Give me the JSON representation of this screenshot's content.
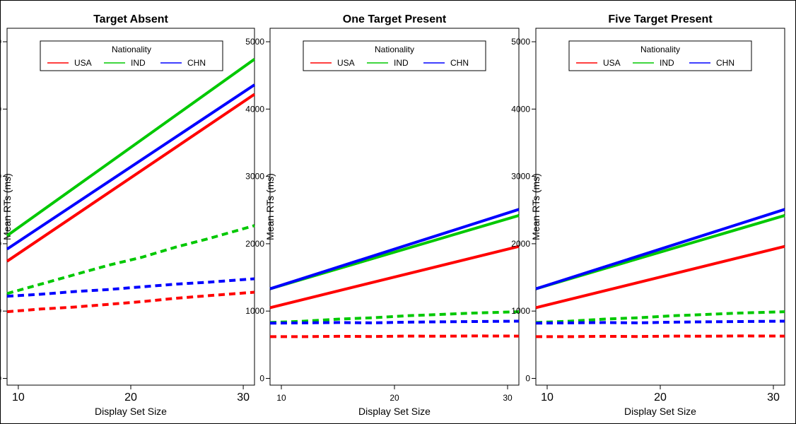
{
  "chart_data": [
    {
      "type": "line",
      "title": "Target Absent",
      "xlabel": "Display Set Size",
      "ylabel": "Mean RTs (ms)",
      "xlim": [
        9,
        31
      ],
      "ylim": [
        -100,
        5200
      ],
      "xticks": [
        10,
        20,
        30
      ],
      "yticks": [
        0,
        1000,
        2000,
        3000,
        4000,
        5000
      ],
      "legend": {
        "title": "Nationality",
        "position": "top-left",
        "entries": [
          "USA",
          "IND",
          "CHN"
        ]
      },
      "series": [
        {
          "name": "USA",
          "color": "#ff0000",
          "style": "solid",
          "x": [
            9,
            31
          ],
          "y": [
            1740,
            4220
          ]
        },
        {
          "name": "IND",
          "color": "#00c800",
          "style": "solid",
          "x": [
            9,
            31
          ],
          "y": [
            2120,
            4740
          ]
        },
        {
          "name": "CHN",
          "color": "#0000ff",
          "style": "solid",
          "x": [
            9,
            31
          ],
          "y": [
            1920,
            4360
          ]
        },
        {
          "name": "USA",
          "color": "#ff0000",
          "style": "dashed",
          "x": [
            9,
            12,
            15,
            18,
            21,
            24,
            27,
            31
          ],
          "y": [
            990,
            1030,
            1060,
            1100,
            1140,
            1190,
            1230,
            1280
          ]
        },
        {
          "name": "IND",
          "color": "#00c800",
          "style": "dashed",
          "x": [
            9,
            12,
            15,
            18,
            21,
            24,
            27,
            31
          ],
          "y": [
            1260,
            1400,
            1540,
            1680,
            1800,
            1950,
            2080,
            2270
          ]
        },
        {
          "name": "CHN",
          "color": "#0000ff",
          "style": "dashed",
          "x": [
            9,
            12,
            15,
            18,
            21,
            24,
            27,
            31
          ],
          "y": [
            1220,
            1250,
            1290,
            1320,
            1360,
            1400,
            1430,
            1480
          ]
        }
      ]
    },
    {
      "type": "line",
      "title": "One Target Present",
      "xlabel": "Display Set Size",
      "ylabel": "Mean RTs (ms)",
      "xlim": [
        9,
        31
      ],
      "ylim": [
        -100,
        5200
      ],
      "xticks": [
        10,
        20,
        30
      ],
      "yticks": [
        0,
        1000,
        2000,
        3000,
        4000,
        5000
      ],
      "legend": {
        "title": "Nationality",
        "position": "top-left",
        "entries": [
          "USA",
          "IND",
          "CHN"
        ]
      },
      "series": [
        {
          "name": "USA",
          "color": "#ff0000",
          "style": "solid",
          "x": [
            9,
            31
          ],
          "y": [
            1050,
            1960
          ]
        },
        {
          "name": "IND",
          "color": "#00c800",
          "style": "solid",
          "x": [
            9,
            31
          ],
          "y": [
            1330,
            2420
          ]
        },
        {
          "name": "CHN",
          "color": "#0000ff",
          "style": "solid",
          "x": [
            9,
            31
          ],
          "y": [
            1330,
            2510
          ]
        },
        {
          "name": "USA",
          "color": "#ff0000",
          "style": "dashed",
          "x": [
            9,
            12,
            15,
            18,
            21,
            24,
            27,
            31
          ],
          "y": [
            620,
            620,
            625,
            622,
            628,
            626,
            630,
            628
          ]
        },
        {
          "name": "IND",
          "color": "#00c800",
          "style": "dashed",
          "x": [
            9,
            12,
            15,
            18,
            21,
            24,
            27,
            31
          ],
          "y": [
            830,
            850,
            880,
            900,
            930,
            950,
            970,
            990
          ]
        },
        {
          "name": "CHN",
          "color": "#0000ff",
          "style": "dashed",
          "x": [
            9,
            12,
            15,
            18,
            21,
            24,
            27,
            31
          ],
          "y": [
            820,
            825,
            830,
            825,
            835,
            840,
            845,
            850
          ]
        }
      ]
    },
    {
      "type": "line",
      "title": "Five Target Present",
      "xlabel": "Display Set Size",
      "ylabel": "Mean RTs (ms)",
      "xlim": [
        9,
        31
      ],
      "ylim": [
        -100,
        5200
      ],
      "xticks": [
        10,
        20,
        30
      ],
      "yticks": [
        0,
        1000,
        2000,
        3000,
        4000,
        5000
      ],
      "legend": {
        "title": "Nationality",
        "position": "top-left",
        "entries": [
          "USA",
          "IND",
          "CHN"
        ]
      },
      "series": [
        {
          "name": "USA",
          "color": "#ff0000",
          "style": "solid",
          "x": [
            9,
            31
          ],
          "y": [
            1050,
            1960
          ]
        },
        {
          "name": "IND",
          "color": "#00c800",
          "style": "solid",
          "x": [
            9,
            31
          ],
          "y": [
            1330,
            2420
          ]
        },
        {
          "name": "CHN",
          "color": "#0000ff",
          "style": "solid",
          "x": [
            9,
            31
          ],
          "y": [
            1330,
            2510
          ]
        },
        {
          "name": "USA",
          "color": "#ff0000",
          "style": "dashed",
          "x": [
            9,
            12,
            15,
            18,
            21,
            24,
            27,
            31
          ],
          "y": [
            620,
            620,
            625,
            622,
            628,
            626,
            630,
            628
          ]
        },
        {
          "name": "IND",
          "color": "#00c800",
          "style": "dashed",
          "x": [
            9,
            12,
            15,
            18,
            21,
            24,
            27,
            31
          ],
          "y": [
            830,
            850,
            880,
            900,
            930,
            950,
            970,
            990
          ]
        },
        {
          "name": "CHN",
          "color": "#0000ff",
          "style": "dashed",
          "x": [
            9,
            12,
            15,
            18,
            21,
            24,
            27,
            31
          ],
          "y": [
            820,
            825,
            830,
            825,
            835,
            840,
            845,
            850
          ]
        }
      ]
    }
  ]
}
